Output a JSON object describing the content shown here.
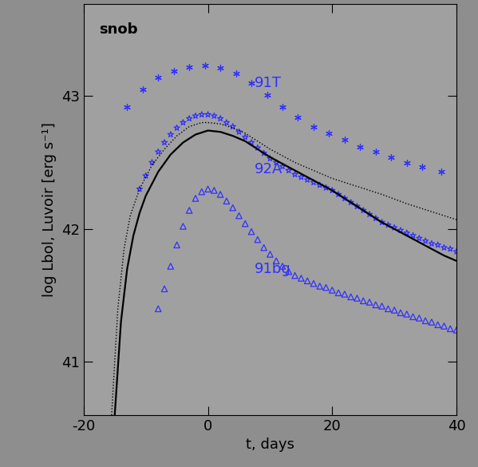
{
  "chart_data": {
    "type": "line",
    "x_label": "t, days",
    "y_label": "log Lbol, Luvoir [erg s⁻¹]",
    "xlim": [
      -20,
      40
    ],
    "xticks": [
      -20,
      0,
      20,
      40
    ],
    "ylim": [
      40.6,
      43.69
    ],
    "yticks": [
      41,
      42,
      43
    ],
    "grid": false,
    "annotations": [
      {
        "text": "snob",
        "x": -17.5,
        "y": 43.5
      },
      {
        "text": "91T",
        "x": 7.5,
        "y": 43.1
      },
      {
        "text": "92A",
        "x": 7.5,
        "y": 42.45
      },
      {
        "text": "91bg",
        "x": 7.5,
        "y": 41.7
      }
    ],
    "series": [
      {
        "type": "scatter",
        "color": "#3030ff",
        "marker": "asterisk",
        "x": [
          -13,
          -10.5,
          -8,
          -5.5,
          -3,
          -0.5,
          2,
          4.5,
          7,
          9.5,
          12,
          14.5,
          17,
          19.5,
          22,
          24.5,
          27,
          29.5,
          32,
          34.5,
          37.5
        ],
        "values": [
          42.92,
          43.05,
          43.14,
          43.19,
          43.22,
          43.23,
          43.21,
          43.17,
          43.1,
          43.01,
          42.92,
          42.84,
          42.77,
          42.72,
          42.67,
          42.62,
          42.58,
          42.54,
          42.5,
          42.47,
          42.43
        ]
      },
      {
        "type": "scatter",
        "color": "#3030ff",
        "marker": "star",
        "x": [
          -11,
          -10,
          -9,
          -8,
          -7,
          -6,
          -5,
          -4,
          -3,
          -2,
          -1,
          0,
          1,
          2,
          3,
          4,
          5,
          6,
          7,
          8,
          9,
          10,
          11,
          12,
          13,
          14,
          15,
          16,
          17,
          18,
          19,
          20,
          21,
          22,
          23,
          24,
          25,
          26,
          27,
          28,
          29,
          30,
          31,
          32,
          33,
          34,
          35,
          36,
          37,
          38,
          39,
          40
        ],
        "values": [
          42.3,
          42.4,
          42.5,
          42.58,
          42.65,
          42.71,
          42.76,
          42.8,
          42.83,
          42.85,
          42.86,
          42.86,
          42.85,
          42.83,
          42.8,
          42.77,
          42.73,
          42.69,
          42.65,
          42.61,
          42.57,
          42.53,
          42.5,
          42.47,
          42.44,
          42.41,
          42.39,
          42.37,
          42.35,
          42.33,
          42.31,
          42.29,
          42.26,
          42.23,
          42.2,
          42.17,
          42.14,
          42.11,
          42.08,
          42.05,
          42.03,
          42.01,
          41.99,
          41.97,
          41.95,
          41.93,
          41.91,
          41.89,
          41.88,
          41.86,
          41.85,
          41.83
        ]
      },
      {
        "type": "scatter",
        "color": "#3030ff",
        "marker": "triangle",
        "x": [
          -8,
          -7,
          -6,
          -5,
          -4,
          -3,
          -2,
          -1,
          0,
          1,
          2,
          3,
          4,
          5,
          6,
          7,
          8,
          9,
          10,
          11,
          12,
          13,
          14,
          15,
          16,
          17,
          18,
          19,
          20,
          21,
          22,
          23,
          24,
          25,
          26,
          27,
          28,
          29,
          30,
          31,
          32,
          33,
          34,
          35,
          36,
          37,
          38,
          39,
          40
        ],
        "values": [
          41.4,
          41.55,
          41.72,
          41.88,
          42.02,
          42.14,
          42.23,
          42.28,
          42.3,
          42.29,
          42.26,
          42.21,
          42.16,
          42.1,
          42.04,
          41.98,
          41.92,
          41.86,
          41.81,
          41.76,
          41.72,
          41.68,
          41.65,
          41.63,
          41.61,
          41.59,
          41.57,
          41.56,
          41.54,
          41.52,
          41.51,
          41.49,
          41.48,
          41.46,
          41.45,
          41.43,
          41.42,
          41.4,
          41.39,
          41.37,
          41.36,
          41.34,
          41.33,
          41.31,
          41.3,
          41.28,
          41.27,
          41.25,
          41.24
        ]
      },
      {
        "type": "line",
        "color": "#000000",
        "line_style": "solid",
        "x": [
          -15,
          -14,
          -13,
          -12,
          -11,
          -10,
          -8,
          -6,
          -4,
          -2,
          0,
          2,
          4,
          6,
          8,
          10,
          12,
          14,
          16,
          18,
          20,
          22,
          24,
          26,
          28,
          30,
          32,
          34,
          36,
          38,
          40
        ],
        "values": [
          40.6,
          41.3,
          41.7,
          41.95,
          42.12,
          42.25,
          42.43,
          42.56,
          42.65,
          42.71,
          42.74,
          42.73,
          42.7,
          42.66,
          42.6,
          42.54,
          42.49,
          42.44,
          42.39,
          42.34,
          42.29,
          42.23,
          42.17,
          42.11,
          42.05,
          42.0,
          41.95,
          41.9,
          41.85,
          41.8,
          41.76
        ]
      },
      {
        "type": "line",
        "color": "#000000",
        "line_style": "dotted",
        "x": [
          -15.5,
          -14.5,
          -13.5,
          -12.5,
          -11,
          -9,
          -7,
          -5,
          -3,
          -1,
          0,
          2,
          4,
          6,
          8,
          10,
          12,
          14,
          16,
          18,
          20,
          24,
          28,
          32,
          36,
          40
        ],
        "values": [
          40.6,
          41.4,
          41.85,
          42.1,
          42.3,
          42.48,
          42.6,
          42.7,
          42.77,
          42.8,
          42.8,
          42.79,
          42.76,
          42.72,
          42.66,
          42.6,
          42.55,
          42.5,
          42.46,
          42.42,
          42.38,
          42.32,
          42.26,
          42.19,
          42.13,
          42.07
        ]
      }
    ]
  }
}
